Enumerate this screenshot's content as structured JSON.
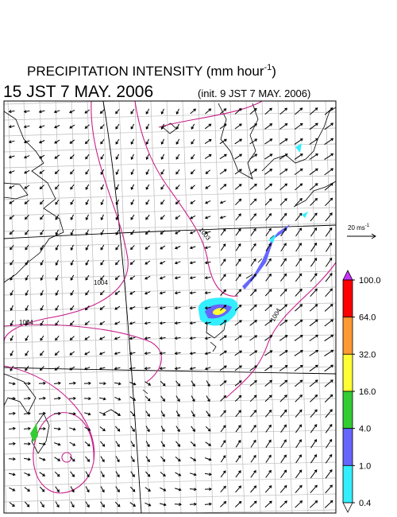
{
  "header": {
    "title": "PRECIPITATION INTENSITY (mm hour",
    "title_exponent": "-1",
    "title_close": ")",
    "valid_time": "15 JST 7 MAY. 2006",
    "init_time": "(init. 9 JST 7 MAY. 2006)"
  },
  "wind_reference": {
    "label": "20 ms",
    "exponent": "-1"
  },
  "isobar_labels": [
    "1003",
    "1004",
    "1004",
    "1004"
  ],
  "colorbar": {
    "levels": [
      {
        "value": 100,
        "label": "100.0"
      },
      {
        "value": 64,
        "label": "64.0"
      },
      {
        "value": 32,
        "label": "32.0"
      },
      {
        "value": 16,
        "label": "16.0"
      },
      {
        "value": 4,
        "label": "4.0"
      },
      {
        "value": 1,
        "label": "1.0"
      },
      0.4
    ],
    "colors": [
      "#ff0000",
      "#ff9933",
      "#ffff33",
      "#33cc33",
      "#6666ff",
      "#33eeff"
    ],
    "over_color": "#cc33ff",
    "under_color": "#ffffff"
  }
}
